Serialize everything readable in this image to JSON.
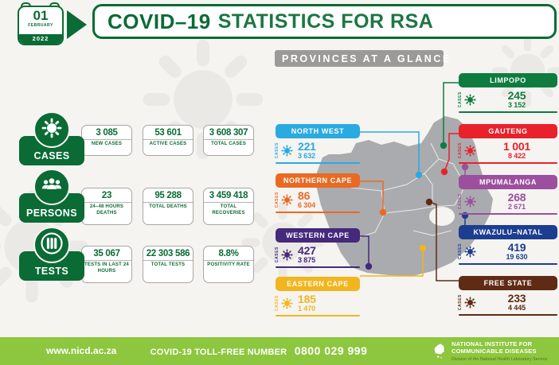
{
  "date_badge": {
    "day": "01",
    "month": "FEBRUARY",
    "year": "2022"
  },
  "header": {
    "title_bold": "COVID–19",
    "title_rest": "STATISTICS FOR RSA"
  },
  "summary_rows": [
    {
      "label": "CASES",
      "icon": "virus-icon",
      "stats": [
        {
          "value": "3 085",
          "label": "NEW CASES"
        },
        {
          "value": "53 601",
          "label": "ACTIVE CASES"
        },
        {
          "value": "3 608 307",
          "label": "TOTAL CASES"
        }
      ]
    },
    {
      "label": "PERSONS",
      "icon": "people-icon",
      "stats": [
        {
          "value": "23",
          "label": "24–48 HOURS DEATHS"
        },
        {
          "value": "95 288",
          "label": "TOTAL DEATHS"
        },
        {
          "value": "3 459 418",
          "label": "TOTAL RECOVERIES"
        }
      ]
    },
    {
      "label": "TESTS",
      "icon": "test-bars-icon",
      "stats": [
        {
          "value": "35 067",
          "label": "TESTS IN LAST 24 HOURS"
        },
        {
          "value": "22 303 586",
          "label": "TOTAL TESTS"
        },
        {
          "value": "8.8%",
          "label": "POSITIVITY RATE"
        }
      ]
    }
  ],
  "provinces_panel": {
    "title": "PROVINCES AT A GLANCE",
    "cases_caption": "CASES"
  },
  "provinces": [
    {
      "name": "LIMPOPO",
      "new_cases": "245",
      "active_cases": "3 152",
      "color": "#0e7c3f"
    },
    {
      "name": "NORTH WEST",
      "new_cases": "221",
      "active_cases": "3 632",
      "color": "#29aae1"
    },
    {
      "name": "GAUTENG",
      "new_cases": "1 001",
      "active_cases": "8 422",
      "color": "#e8212b"
    },
    {
      "name": "NORTHERN CAPE",
      "new_cases": "86",
      "active_cases": "6 304",
      "color": "#e96a24"
    },
    {
      "name": "MPUMALANGA",
      "new_cases": "268",
      "active_cases": "2 671",
      "color": "#9b4f9e"
    },
    {
      "name": "WESTERN CAPE",
      "new_cases": "427",
      "active_cases": "3 875",
      "color": "#45297b"
    },
    {
      "name": "KWAZULU–NATAL",
      "new_cases": "419",
      "active_cases": "19 630",
      "color": "#1d3e90"
    },
    {
      "name": "EASTERN CAPE",
      "new_cases": "185",
      "active_cases": "1 470",
      "color": "#f2b51e"
    },
    {
      "name": "FREE STATE",
      "new_cases": "233",
      "active_cases": "4 445",
      "color": "#5f2b15"
    }
  ],
  "footer": {
    "website": "www.nicd.ac.za",
    "tollfree_label": "COVID-19 TOLL-FREE NUMBER",
    "tollfree_number": "0800 029 999",
    "org_name": "NATIONAL INSTITUTE FOR COMMUNICABLE DISEASES",
    "org_tagline": "Division of the National Health Laboratory Service"
  },
  "colors": {
    "theme_green": "#0a6b35",
    "footer_green": "#8dc63f",
    "map_gray": "#a9abae",
    "panel_title_gray": "#9c9a97"
  },
  "chart_data": {
    "type": "table",
    "title": "COVID–19 STATISTICS FOR RSA",
    "date": "01 FEBRUARY 2022",
    "summary": {
      "new_cases": 3085,
      "active_cases": 53601,
      "total_cases": 3608307,
      "deaths_24_48_hours": 23,
      "total_deaths": 95288,
      "total_recoveries": 3459418,
      "tests_last_24_hours": 35067,
      "total_tests": 22303586,
      "positivity_rate_pct": 8.8
    },
    "categories": [
      "Limpopo",
      "North West",
      "Gauteng",
      "Northern Cape",
      "Mpumalanga",
      "Western Cape",
      "KwaZulu-Natal",
      "Eastern Cape",
      "Free State"
    ],
    "series": [
      {
        "name": "New cases",
        "values": [
          245,
          221,
          1001,
          86,
          268,
          427,
          419,
          185,
          233
        ]
      },
      {
        "name": "Active cases",
        "values": [
          3152,
          3632,
          8422,
          6304,
          2671,
          3875,
          19630,
          1470,
          4445
        ]
      }
    ]
  }
}
